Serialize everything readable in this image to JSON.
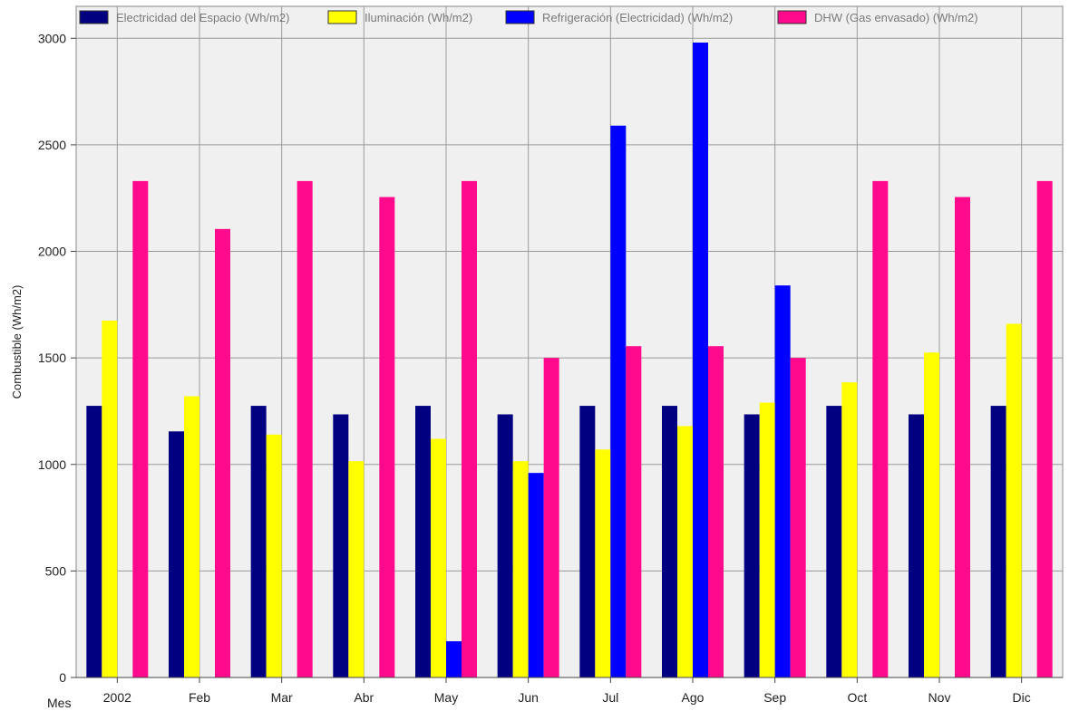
{
  "chart_data": {
    "type": "bar",
    "title": "",
    "xlabel": "Mes",
    "ylabel": "Combustible (Wh/m2)",
    "ylim": [
      0,
      3150
    ],
    "yticks": [
      0,
      500,
      1000,
      1500,
      2000,
      2500,
      3000
    ],
    "grid": true,
    "legend_position": "top",
    "categories": [
      "2002",
      "Feb",
      "Mar",
      "Abr",
      "May",
      "Jun",
      "Jul",
      "Ago",
      "Sep",
      "Oct",
      "Nov",
      "Dic"
    ],
    "series": [
      {
        "name": "Electricidad del Espacio (Wh/m2)",
        "color": "#000080",
        "values": [
          1275,
          1155,
          1275,
          1235,
          1275,
          1235,
          1275,
          1275,
          1235,
          1275,
          1235,
          1275
        ]
      },
      {
        "name": "Iluminación (Wh/m2)",
        "color": "#ffff00",
        "values": [
          1675,
          1320,
          1140,
          1015,
          1120,
          1015,
          1070,
          1180,
          1290,
          1385,
          1525,
          1660
        ]
      },
      {
        "name": "Refrigeración (Electricidad) (Wh/m2)",
        "color": "#0000ff",
        "values": [
          0,
          0,
          0,
          0,
          170,
          960,
          2590,
          2980,
          1840,
          0,
          0,
          0
        ]
      },
      {
        "name": "DHW (Gas envasado) (Wh/m2)",
        "color": "#ff0a8c",
        "values": [
          2330,
          2105,
          2330,
          2255,
          2330,
          1500,
          1555,
          1555,
          1500,
          2330,
          2255,
          2330
        ]
      }
    ],
    "colors": {
      "plot_background": "#f0f0f0",
      "grid": "#9a9a9a",
      "frame": "#8a8a8a"
    }
  }
}
